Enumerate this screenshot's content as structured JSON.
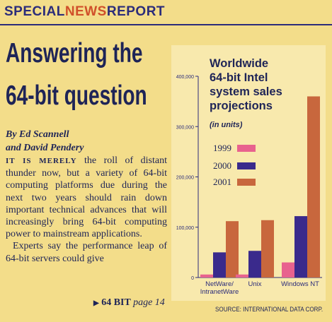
{
  "banner": {
    "part1": "SPECIAL",
    "part2": "NEWS",
    "part3": "REPORT"
  },
  "headline": {
    "line1": "Answering the",
    "line2": "64-bit question"
  },
  "byline": {
    "line1": "By Ed Scannell",
    "line2": "and David Pendery"
  },
  "article": {
    "lead": "IT IS MERELY",
    "para1": " the roll of distant thunder now, but a variety of 64-bit computing platforms due during the next two years should rain down important technical advances that will increasingly bring  64-bit computing power to mainstream applications.",
    "para2": "Experts say the performance leap of 64-bit servers could give"
  },
  "jump": {
    "arrow": "▶",
    "label": "64 BIT",
    "page": "page 14"
  },
  "colors": {
    "accent_blue": "#2b2c7a",
    "accent_orange": "#d0502a",
    "bar1999": "#e8628e",
    "bar2000": "#3a2a8c",
    "bar2001": "#c8673d"
  },
  "chart_data": {
    "type": "bar",
    "title": "Worldwide 64-bit Intel system sales projections",
    "subtitle": "(in units)",
    "categories": [
      "NetWare/ IntranetWare",
      "Unix",
      "Windows NT"
    ],
    "series": [
      {
        "name": "1999",
        "values": [
          6000,
          6000,
          30000
        ]
      },
      {
        "name": "2000",
        "values": [
          50000,
          53000,
          122000
        ]
      },
      {
        "name": "2001",
        "values": [
          112000,
          114000,
          360000
        ]
      }
    ],
    "ylim": [
      0,
      400000
    ],
    "yticks": [
      "0",
      "100,000",
      "200,000",
      "300,000",
      "400,000"
    ],
    "legend_position": "middle-left",
    "source": "SOURCE: INTERNATIONAL DATA CORP."
  }
}
